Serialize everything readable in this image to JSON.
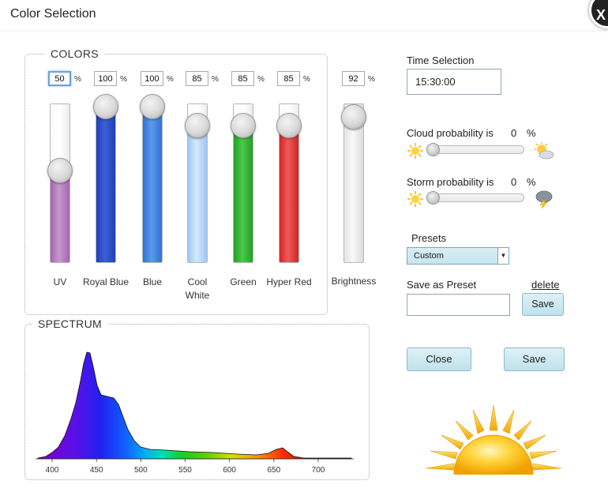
{
  "window": {
    "title": "Color Selection",
    "close_glyph": "X"
  },
  "colors_panel": {
    "title": "COLORS",
    "sliders": [
      {
        "label": "UV",
        "value": "50",
        "level": 0.5,
        "color_top": "#a564b0",
        "color_bottom": "#c898cf"
      },
      {
        "label": "Royal Blue",
        "value": "100",
        "level": 1.0,
        "color_top": "#1f3fb8",
        "color_bottom": "#3c5fd6"
      },
      {
        "label": "Blue",
        "value": "100",
        "level": 1.0,
        "color_top": "#2f72d8",
        "color_bottom": "#5b9ae8"
      },
      {
        "label": "Cool White",
        "value": "85",
        "level": 0.85,
        "color_top": "#9cc6f2",
        "color_bottom": "#d8e9fb"
      },
      {
        "label": "Green",
        "value": "85",
        "level": 0.85,
        "color_top": "#23a023",
        "color_bottom": "#4cc94c"
      },
      {
        "label": "Hyper Red",
        "value": "85",
        "level": 0.85,
        "color_top": "#d42424",
        "color_bottom": "#ee5a5a"
      }
    ],
    "percent_sign": "%"
  },
  "brightness": {
    "label": "Brightness",
    "value": "92",
    "level": 0.92
  },
  "spectrum_panel": {
    "title": "SPECTRUM",
    "ticks": [
      "400",
      "450",
      "500",
      "550",
      "600",
      "650",
      "700"
    ]
  },
  "time_selection": {
    "label": "Time Selection",
    "value": "15:30:00"
  },
  "cloud": {
    "label": "Cloud probability is",
    "value": "0",
    "unit": "%",
    "level": 0
  },
  "storm": {
    "label": "Storm probability is",
    "value": "0",
    "unit": "%",
    "level": 0
  },
  "presets": {
    "label": "Presets",
    "selected": "Custom"
  },
  "save_preset": {
    "label": "Save as Preset",
    "delete_link": "delete",
    "input_value": "",
    "save_button": "Save"
  },
  "footer": {
    "close_button": "Close",
    "save_button": "Save"
  }
}
